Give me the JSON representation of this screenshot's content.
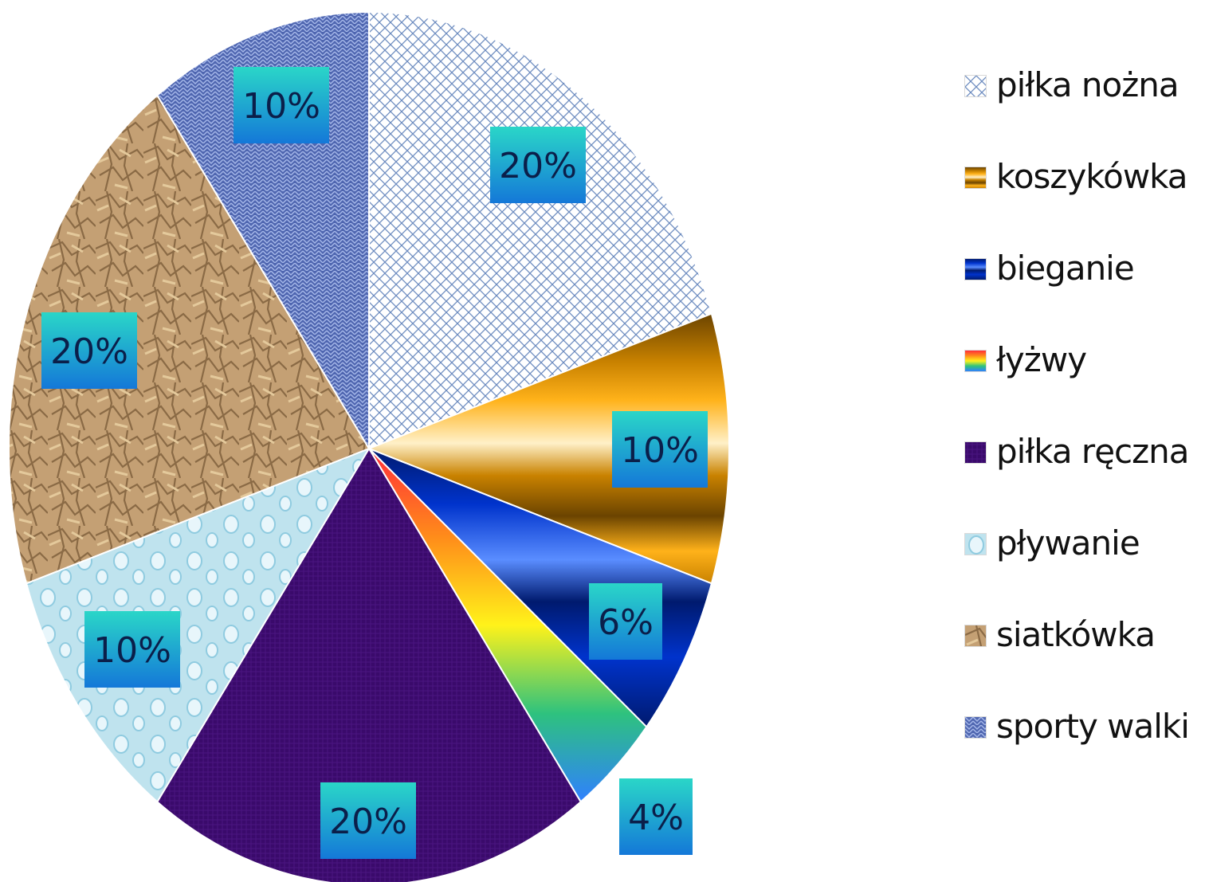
{
  "chart_data": {
    "type": "pie",
    "start_angle_deg": 0,
    "direction": "clockwise",
    "slices": [
      {
        "name": "piłka nożna",
        "value": 20,
        "label": "20%",
        "colors": [
          "#ffffff",
          "#6d8cc0"
        ],
        "fill": "crosshatch"
      },
      {
        "name": "koszykówka",
        "value": 10,
        "label": "10%",
        "colors": [
          "#6b4400",
          "#c98200",
          "#ffb21a",
          "#fff0c8"
        ],
        "fill": "metallic-bands"
      },
      {
        "name": "bieganie",
        "value": 6,
        "label": "6%",
        "colors": [
          "#001a6e",
          "#0033cc",
          "#5a8dff"
        ],
        "fill": "metallic-bands"
      },
      {
        "name": "łyżwy",
        "value": 4,
        "label": "4%",
        "colors": [
          "#ff2d3a",
          "#ff8c1a",
          "#fff21a",
          "#2ec27e",
          "#2f80ff"
        ],
        "fill": "rainbow"
      },
      {
        "name": "piłka ręczna",
        "value": 20,
        "label": "20%",
        "colors": [
          "#3a0a6b",
          "#4b1580"
        ],
        "fill": "fabric"
      },
      {
        "name": "pływanie",
        "value": 10,
        "label": "10%",
        "colors": [
          "#bfe3ee",
          "#8fcbe0",
          "#e8f6fb"
        ],
        "fill": "water-drops"
      },
      {
        "name": "siatkówka",
        "value": 20,
        "label": "20%",
        "colors": [
          "#8a6a45",
          "#c4a074",
          "#e4c99b"
        ],
        "fill": "crumpled-paper"
      },
      {
        "name": "sporty walki",
        "value": 10,
        "label": "10%",
        "colors": [
          "#4f66b0",
          "#7d96d8",
          "#a7b9ea"
        ],
        "fill": "knit"
      }
    ],
    "label_box_colors": [
      "#2ad6c8",
      "#1478d8"
    ]
  }
}
